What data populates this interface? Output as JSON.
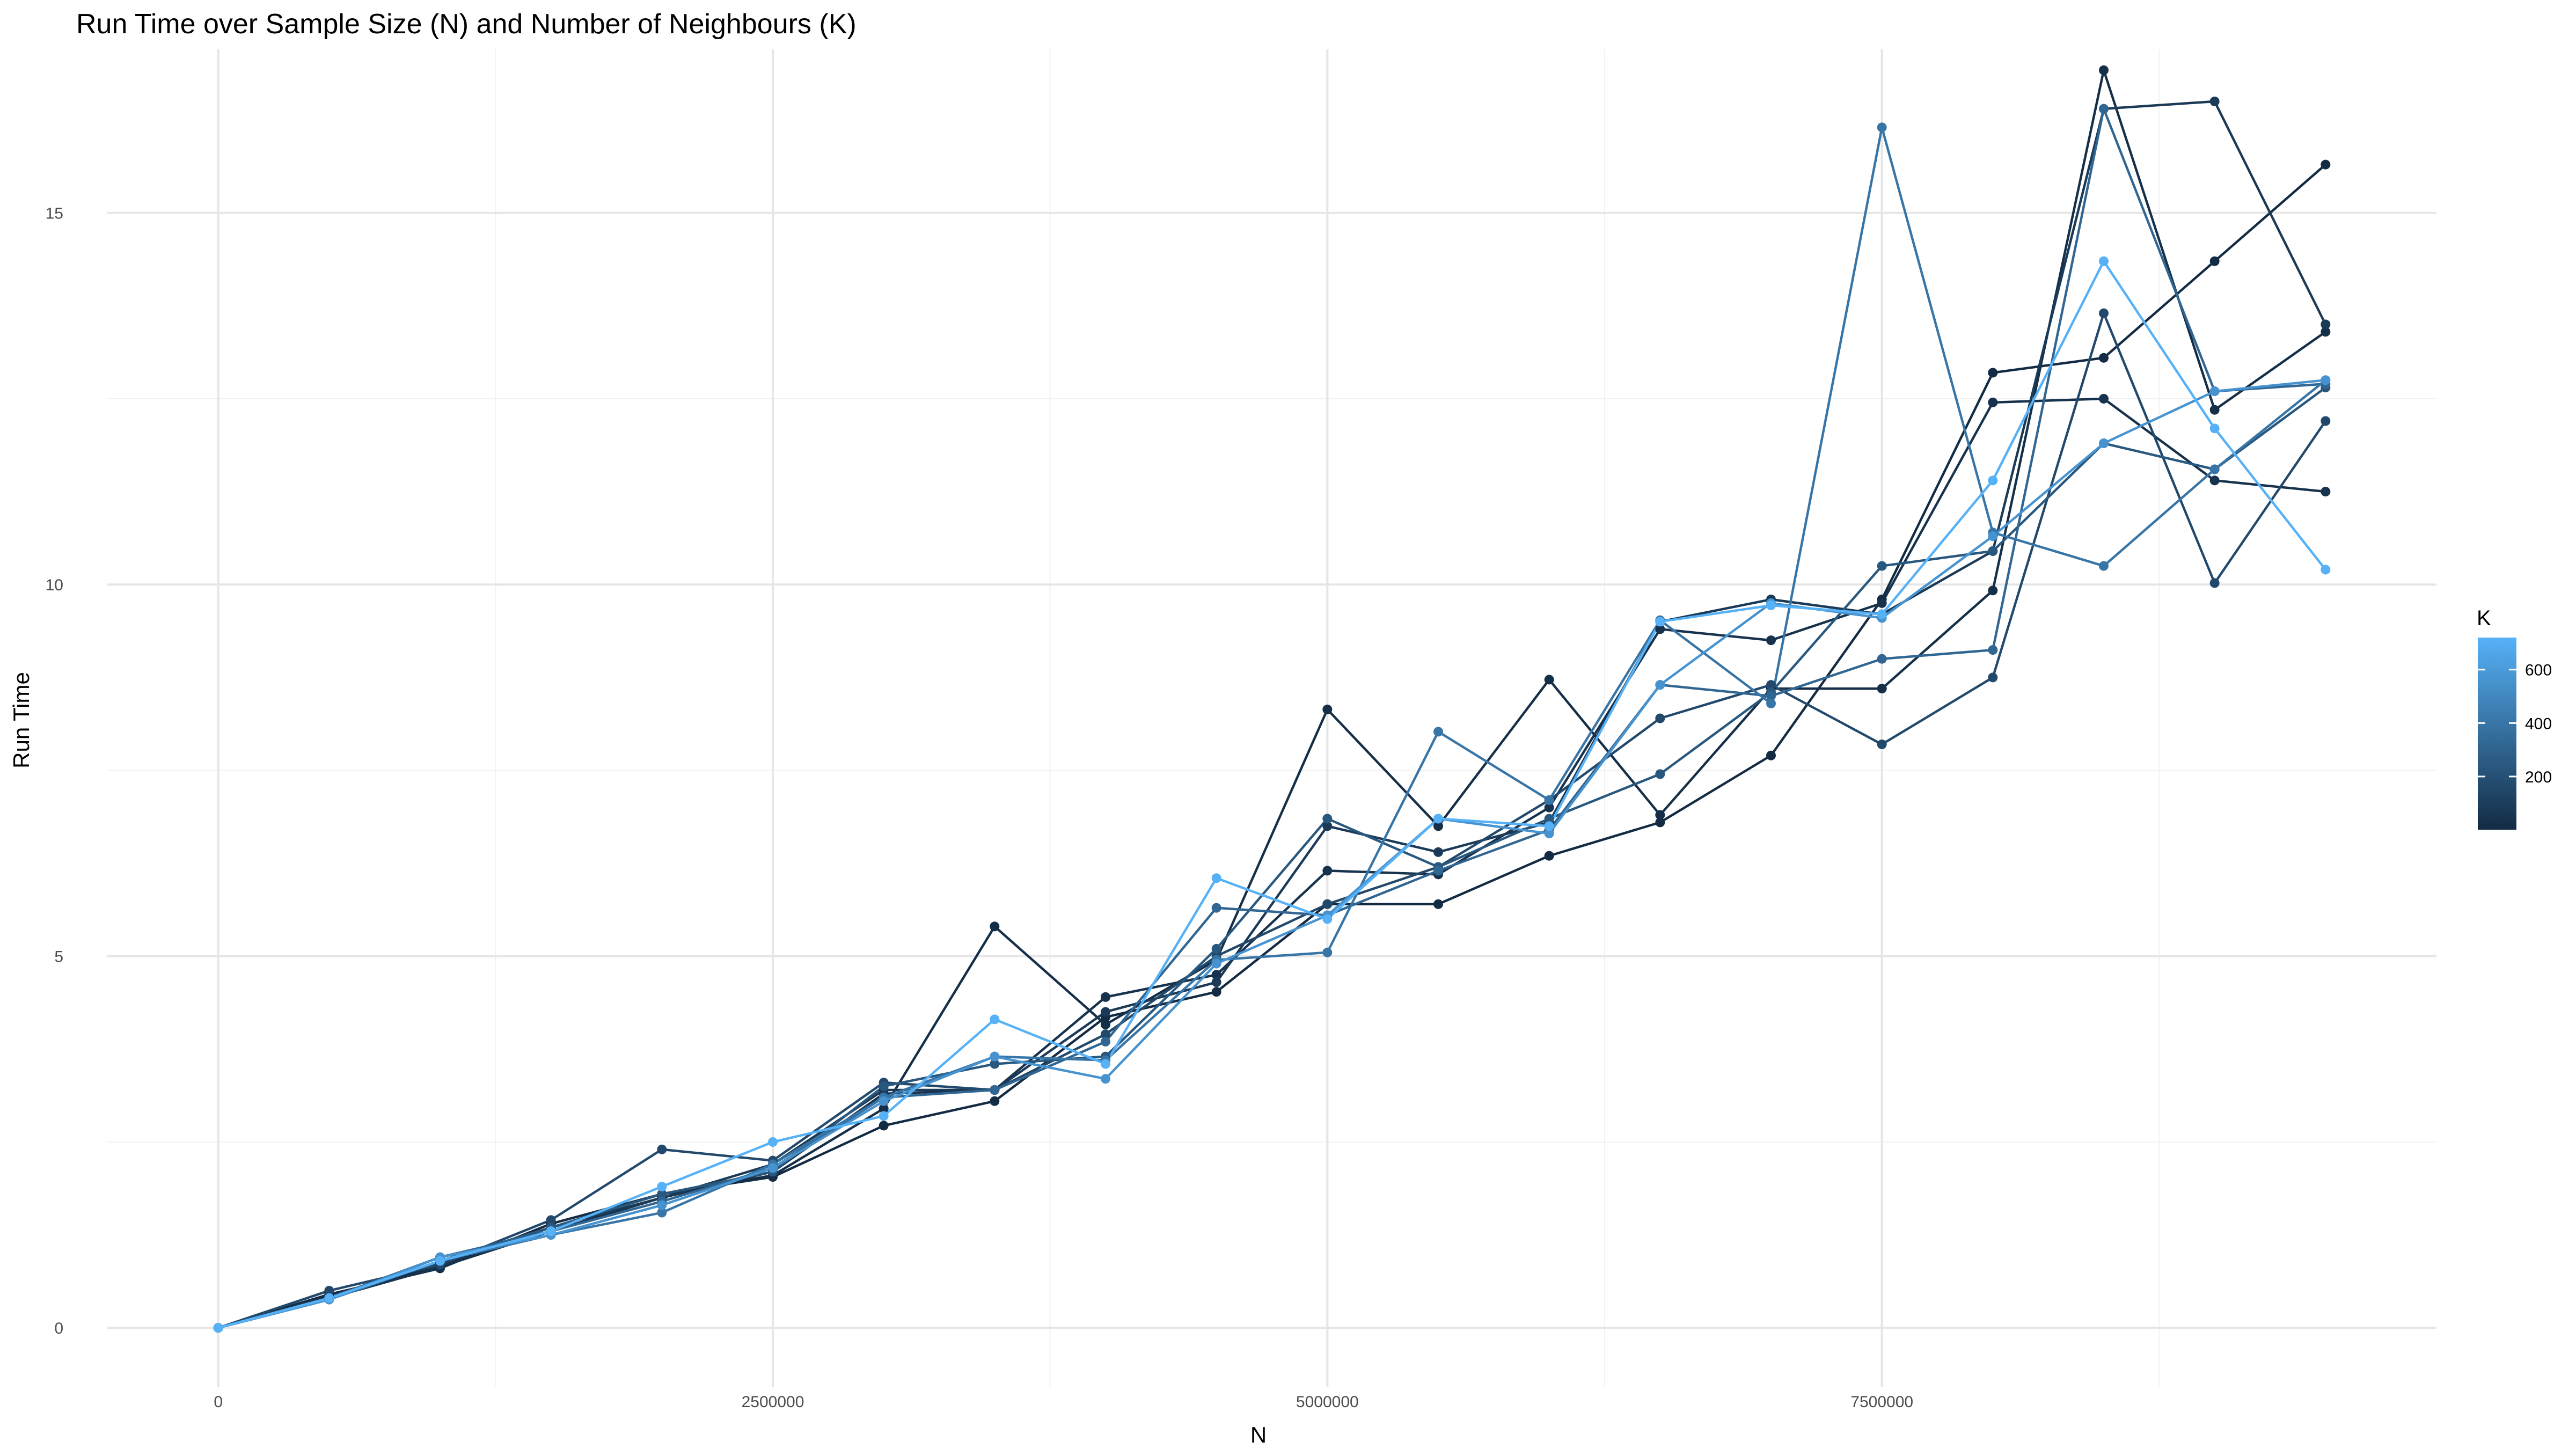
{
  "chart_data": {
    "type": "line",
    "title": "Run Time over Sample Size (N) and Number of Neighbours (K)",
    "xlabel": "N",
    "ylabel": "Run Time",
    "xlim": [
      -500000,
      10000000
    ],
    "ylim": [
      -0.8,
      17.2
    ],
    "x_ticks": [
      0,
      2500000,
      5000000,
      7500000
    ],
    "x_tick_labels": [
      "0",
      "2500000",
      "5000000",
      "7500000"
    ],
    "y_ticks": [
      0,
      5,
      10,
      15
    ],
    "y_tick_labels": [
      "0",
      "5",
      "10",
      "15"
    ],
    "grid": true,
    "legend": {
      "title": "K",
      "position": "right",
      "min": 1,
      "max": 720,
      "breaks": [
        200,
        400,
        600
      ],
      "break_labels": [
        "200",
        "400",
        "600"
      ],
      "low_color": "#132B43",
      "high_color": "#56B1F7"
    },
    "x": [
      0,
      500000,
      1000000,
      1500000,
      2000000,
      2500000,
      3000000,
      3500000,
      4000000,
      4500000,
      5000000,
      5500000,
      6000000,
      6500000,
      7000000,
      7500000,
      8000000,
      8500000,
      9000000,
      9500000
    ],
    "series": [
      {
        "k": 1,
        "values": [
          0,
          0.45,
          0.8,
          1.4,
          1.8,
          2.03,
          2.72,
          3.05,
          4.18,
          4.52,
          5.7,
          5.7,
          6.35,
          6.8,
          7.7,
          9.8,
          12.85,
          13.05,
          14.35,
          15.65
        ]
      },
      {
        "k": 20,
        "values": [
          0,
          0.4,
          0.85,
          1.35,
          1.8,
          2.05,
          2.95,
          5.4,
          4.08,
          4.95,
          8.32,
          6.75,
          8.72,
          6.9,
          8.6,
          8.6,
          9.92,
          16.92,
          12.35,
          13.4
        ]
      },
      {
        "k": 40,
        "values": [
          0,
          0.4,
          0.82,
          1.3,
          1.75,
          2.1,
          3.15,
          3.2,
          4.45,
          4.75,
          6.15,
          6.1,
          7.0,
          9.4,
          9.25,
          9.75,
          12.45,
          12.5,
          11.4,
          11.25
        ]
      },
      {
        "k": 80,
        "values": [
          0,
          0.42,
          0.88,
          1.35,
          1.75,
          2.2,
          3.2,
          3.2,
          4.25,
          4.65,
          6.75,
          6.4,
          6.8,
          9.5,
          9.8,
          9.6,
          10.45,
          16.4,
          16.5,
          13.5
        ]
      },
      {
        "k": 160,
        "values": [
          0,
          0.5,
          0.85,
          1.45,
          2.4,
          2.25,
          3.3,
          3.2,
          3.95,
          5.0,
          5.7,
          6.2,
          7.1,
          8.2,
          8.65,
          7.85,
          8.75,
          13.65,
          10.02,
          12.2
        ]
      },
      {
        "k": 240,
        "values": [
          0,
          0.4,
          0.9,
          1.35,
          1.8,
          2.1,
          3.25,
          3.55,
          3.65,
          5.1,
          6.85,
          6.2,
          6.85,
          7.45,
          8.55,
          10.25,
          10.45,
          11.9,
          11.55,
          12.65
        ]
      },
      {
        "k": 320,
        "values": [
          0,
          0.4,
          0.95,
          1.3,
          1.7,
          2.15,
          3.1,
          3.2,
          3.85,
          5.65,
          5.55,
          6.15,
          6.7,
          8.65,
          8.5,
          9.0,
          9.12,
          16.4,
          12.6,
          12.7
        ]
      },
      {
        "k": 400,
        "values": [
          0,
          0.38,
          0.9,
          1.25,
          1.55,
          2.2,
          3.1,
          3.65,
          3.6,
          4.95,
          5.05,
          8.02,
          7.1,
          9.52,
          8.4,
          16.15,
          10.7,
          10.25,
          11.55,
          12.75
        ]
      },
      {
        "k": 560,
        "values": [
          0,
          0.38,
          0.95,
          1.25,
          1.65,
          2.15,
          3.05,
          3.65,
          3.35,
          4.9,
          5.55,
          6.85,
          6.65,
          8.65,
          9.75,
          9.55,
          10.65,
          11.9,
          12.6,
          12.75
        ]
      },
      {
        "k": 720,
        "values": [
          0,
          0.4,
          0.9,
          1.3,
          1.9,
          2.5,
          2.85,
          4.15,
          3.55,
          6.05,
          5.5,
          6.85,
          6.75,
          9.5,
          9.72,
          9.6,
          11.4,
          14.35,
          12.1,
          10.2
        ]
      }
    ]
  }
}
